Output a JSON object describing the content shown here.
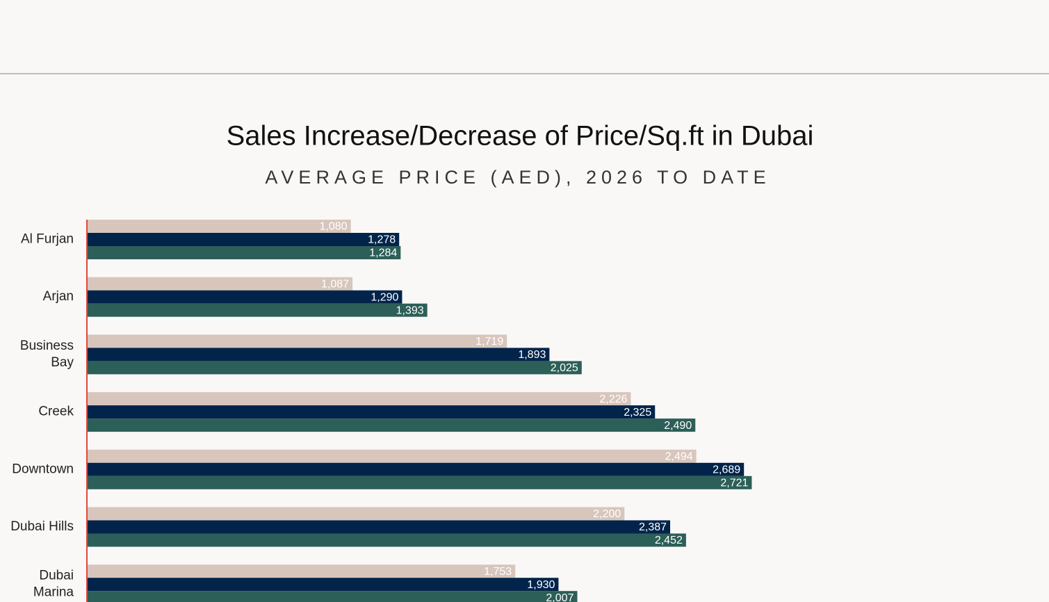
{
  "chart_data": {
    "type": "barh",
    "title": "Sales Increase/Decrease of Price/Sq.ft in Dubai",
    "subtitle": "AVERAGE PRICE (AED), 2026 TO DATE",
    "categories": [
      "Al Furjan",
      "Arjan",
      "Business Bay",
      "Creek",
      "Downtown",
      "Dubai Hills",
      "Dubai Marina"
    ],
    "xlim": [
      0,
      4000
    ],
    "series": [
      {
        "color": "#d8c6bc",
        "values": [
          1080,
          1087,
          1719,
          2226,
          2494,
          2200,
          1753
        ],
        "value_labels": [
          "1,080",
          "1,087",
          "1,719",
          "2,226",
          "2,494",
          "2,200",
          "1,753"
        ]
      },
      {
        "color": "#03244a",
        "values": [
          1278,
          1290,
          1893,
          2325,
          2689,
          2387,
          1930
        ],
        "value_labels": [
          "1,278",
          "1,290",
          "1,893",
          "2,325",
          "2,689",
          "2,387",
          "1,930"
        ]
      },
      {
        "color": "#2c5f58",
        "values": [
          1284,
          1393,
          2025,
          2490,
          2721,
          2452,
          2007
        ],
        "value_labels": [
          "1,284",
          "1,393",
          "2,025",
          "2,490",
          "2,721",
          "2,452",
          "2,007"
        ]
      }
    ]
  }
}
